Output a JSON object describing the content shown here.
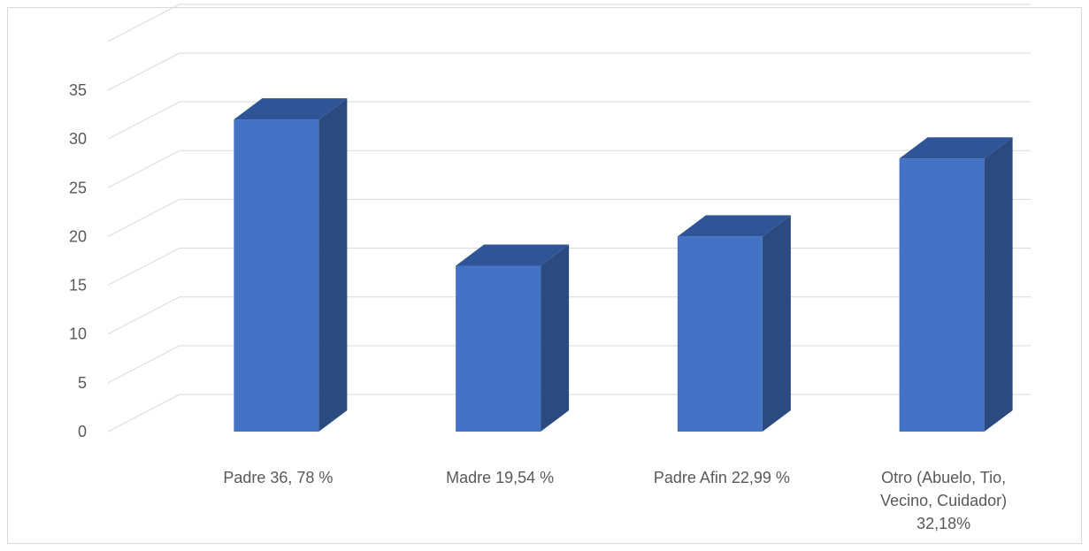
{
  "chart_data": {
    "type": "bar",
    "style": "3d-column",
    "categories": [
      [
        "Padre 36, 78 %"
      ],
      [
        "Madre 19,54 %"
      ],
      [
        "Padre Afin 22,99 %"
      ],
      [
        "Otro (Abuelo, Tio,",
        "Vecino, Cuidador)",
        "32,18%"
      ]
    ],
    "values": [
      32,
      17,
      20,
      28
    ],
    "ylim": [
      0,
      35
    ],
    "yticks": [
      "0",
      "5",
      "10",
      "15",
      "20",
      "25",
      "30",
      "35"
    ],
    "grid": true,
    "legend": "none",
    "colors": {
      "bar_front": "#4472c4",
      "bar_side": "#2a4a80",
      "bar_top": "#2f5597",
      "grid": "#d9d9d9",
      "text": "#595959"
    }
  }
}
